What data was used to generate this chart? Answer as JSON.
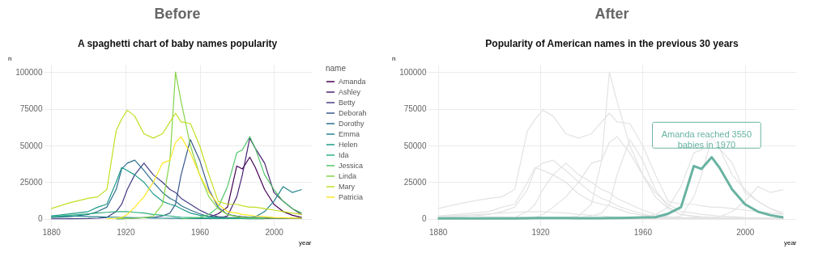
{
  "chart_data": [
    {
      "type": "line",
      "title": "Before",
      "subtitle": "A spaghetti chart of baby names popularity",
      "xlabel": "year",
      "ylabel": "n",
      "legend_title": "name",
      "legend": "right",
      "grid": true,
      "xlim": [
        1876,
        2020
      ],
      "xticks": [
        1880,
        1920,
        1960,
        2000
      ],
      "ylim": [
        -5000,
        105000
      ],
      "yticks": [
        0,
        25000,
        50000,
        75000,
        100000
      ],
      "x": [
        1880,
        1890,
        1900,
        1905,
        1910,
        1915,
        1918,
        1921,
        1925,
        1930,
        1935,
        1940,
        1944,
        1947,
        1950,
        1955,
        1960,
        1965,
        1970,
        1975,
        1980,
        1983,
        1987,
        1990,
        1995,
        2000,
        2005,
        2010,
        2015
      ],
      "series": [
        {
          "name": "Amanda",
          "color": "#440154",
          "values": [
            null,
            null,
            null,
            null,
            null,
            null,
            null,
            null,
            null,
            null,
            null,
            null,
            null,
            null,
            null,
            null,
            null,
            1200,
            3550,
            8000,
            36000,
            34000,
            42000,
            35000,
            20000,
            10000,
            5000,
            2500,
            1000
          ]
        },
        {
          "name": "Ashley",
          "color": "#482173",
          "values": [
            null,
            null,
            null,
            null,
            null,
            null,
            null,
            null,
            null,
            null,
            null,
            null,
            null,
            null,
            null,
            null,
            null,
            100,
            500,
            2000,
            15000,
            30000,
            55000,
            48000,
            38000,
            18000,
            12000,
            7000,
            3000
          ]
        },
        {
          "name": "Betty",
          "color": "#433e85",
          "values": [
            100,
            200,
            300,
            500,
            1000,
            5000,
            10000,
            20000,
            30000,
            38000,
            30000,
            25000,
            20000,
            18000,
            14000,
            10000,
            6000,
            3000,
            1500,
            1000,
            800,
            600,
            500,
            400,
            300,
            300,
            300,
            300,
            300
          ]
        },
        {
          "name": "Deborah",
          "color": "#38598c",
          "values": [
            null,
            null,
            null,
            null,
            null,
            100,
            200,
            300,
            500,
            800,
            1000,
            2000,
            4000,
            10000,
            30000,
            54000,
            40000,
            20000,
            8000,
            3000,
            2000,
            1500,
            1200,
            1000,
            800,
            600,
            500,
            400,
            300
          ]
        },
        {
          "name": "Dorothy",
          "color": "#2d708e",
          "values": [
            1000,
            1500,
            3000,
            5000,
            8000,
            20000,
            34000,
            38000,
            40000,
            33000,
            25000,
            18000,
            14000,
            12000,
            9000,
            6000,
            3500,
            1500,
            800,
            500,
            300,
            300,
            200,
            200,
            200,
            null,
            null,
            null,
            null
          ]
        },
        {
          "name": "Emma",
          "color": "#25858e",
          "values": [
            2000,
            2000,
            1500,
            1500,
            1300,
            1200,
            1000,
            1000,
            900,
            800,
            600,
            500,
            400,
            400,
            300,
            300,
            300,
            300,
            300,
            300,
            400,
            600,
            1000,
            1500,
            5000,
            12000,
            22000,
            18000,
            20000
          ]
        },
        {
          "name": "Helen",
          "color": "#1e9b8a",
          "values": [
            2000,
            3500,
            5000,
            8000,
            10000,
            25000,
            35000,
            33000,
            30000,
            25000,
            17000,
            12000,
            10000,
            9000,
            7000,
            4000,
            2500,
            1500,
            1000,
            700,
            500,
            400,
            400,
            400,
            300,
            null,
            null,
            null,
            null
          ]
        },
        {
          "name": "Ida",
          "color": "#2ab07f",
          "values": [
            1500,
            2500,
            3500,
            4000,
            4500,
            5000,
            5000,
            5000,
            4500,
            4000,
            3000,
            2500,
            2000,
            1500,
            1200,
            1000,
            800,
            600,
            500,
            400,
            300,
            300,
            300,
            300,
            300,
            null,
            null,
            null,
            null
          ]
        },
        {
          "name": "Jessica",
          "color": "#52c569",
          "values": [
            null,
            null,
            null,
            null,
            null,
            null,
            null,
            null,
            null,
            null,
            null,
            null,
            null,
            null,
            100,
            500,
            1000,
            3000,
            8000,
            22000,
            45000,
            47000,
            56000,
            48000,
            30000,
            20000,
            12000,
            7000,
            4000
          ]
        },
        {
          "name": "Linda",
          "color": "#86d549",
          "values": [
            null,
            null,
            null,
            null,
            null,
            100,
            200,
            300,
            500,
            800,
            2000,
            10000,
            40000,
            100000,
            80000,
            50000,
            30000,
            15000,
            7000,
            3000,
            1500,
            1000,
            800,
            600,
            500,
            500,
            500,
            500,
            500
          ]
        },
        {
          "name": "Mary",
          "color": "#c2df23",
          "values": [
            7000,
            11000,
            14000,
            15000,
            20000,
            60000,
            68000,
            74000,
            70000,
            58000,
            55000,
            58000,
            66000,
            72000,
            66000,
            65000,
            50000,
            30000,
            12000,
            10000,
            10000,
            9000,
            8000,
            8000,
            7000,
            6000,
            5000,
            4000,
            3000
          ]
        },
        {
          "name": "Patricia",
          "color": "#fde725",
          "values": [
            null,
            null,
            null,
            null,
            100,
            500,
            1000,
            3000,
            8000,
            15000,
            25000,
            38000,
            40000,
            52000,
            56000,
            45000,
            30000,
            18000,
            10000,
            5000,
            4000,
            3000,
            2500,
            2000,
            1500,
            1000,
            800,
            600,
            500
          ]
        }
      ]
    },
    {
      "type": "line",
      "title": "After",
      "subtitle": "Popularity of American names in the previous 30 years",
      "xlabel": "year",
      "ylabel": "n",
      "grid": true,
      "xlim": [
        1876,
        2020
      ],
      "xticks": [
        1880,
        1920,
        1960,
        2000
      ],
      "ylim": [
        -5000,
        105000
      ],
      "yticks": [
        0,
        25000,
        50000,
        75000,
        100000
      ],
      "annotations": [
        {
          "text": "Amanda reached 3550\nbabies in 1970",
          "x": 1985,
          "y": 57000
        }
      ],
      "x": [
        1880,
        1890,
        1900,
        1905,
        1910,
        1915,
        1918,
        1921,
        1925,
        1930,
        1935,
        1940,
        1944,
        1947,
        1950,
        1955,
        1960,
        1965,
        1970,
        1975,
        1980,
        1983,
        1987,
        1990,
        1995,
        2000,
        2005,
        2010,
        2015
      ],
      "series": [
        {
          "color": "#e3e3e3",
          "values": [
            0,
            0,
            0,
            0,
            0,
            0,
            0,
            0,
            0,
            0,
            0,
            0,
            0,
            0,
            0,
            0,
            0,
            100,
            500,
            2000,
            15000,
            30000,
            55000,
            48000,
            38000,
            18000,
            12000,
            7000,
            3000
          ]
        },
        {
          "color": "#e3e3e3",
          "values": [
            100,
            200,
            300,
            500,
            1000,
            5000,
            10000,
            20000,
            30000,
            38000,
            30000,
            25000,
            20000,
            18000,
            14000,
            10000,
            6000,
            3000,
            1500,
            1000,
            800,
            600,
            500,
            400,
            300,
            300,
            300,
            300,
            300
          ]
        },
        {
          "color": "#e3e3e3",
          "values": [
            0,
            0,
            0,
            0,
            0,
            100,
            200,
            300,
            500,
            800,
            1000,
            2000,
            4000,
            10000,
            30000,
            54000,
            40000,
            20000,
            8000,
            3000,
            2000,
            1500,
            1200,
            1000,
            800,
            600,
            500,
            400,
            300
          ]
        },
        {
          "color": "#e3e3e3",
          "values": [
            1000,
            1500,
            3000,
            5000,
            8000,
            20000,
            34000,
            38000,
            40000,
            33000,
            25000,
            18000,
            14000,
            12000,
            9000,
            6000,
            3500,
            1500,
            800,
            500,
            300,
            300,
            200,
            200,
            200,
            200,
            200,
            200,
            200
          ]
        },
        {
          "color": "#e3e3e3",
          "values": [
            2000,
            2000,
            1500,
            1500,
            1300,
            1200,
            1000,
            1000,
            900,
            800,
            600,
            500,
            400,
            400,
            300,
            300,
            300,
            300,
            300,
            300,
            400,
            600,
            1000,
            1500,
            5000,
            12000,
            22000,
            18000,
            20000
          ]
        },
        {
          "color": "#e3e3e3",
          "values": [
            2000,
            3500,
            5000,
            8000,
            10000,
            25000,
            35000,
            33000,
            30000,
            25000,
            17000,
            12000,
            10000,
            9000,
            7000,
            4000,
            2500,
            1500,
            1000,
            700,
            500,
            400,
            400,
            400,
            300,
            300,
            300,
            300,
            300
          ]
        },
        {
          "color": "#e3e3e3",
          "values": [
            1500,
            2500,
            3500,
            4000,
            4500,
            5000,
            5000,
            5000,
            4500,
            4000,
            3000,
            2500,
            2000,
            1500,
            1200,
            1000,
            800,
            600,
            500,
            400,
            300,
            300,
            300,
            300,
            300,
            300,
            300,
            300,
            300
          ]
        },
        {
          "color": "#e3e3e3",
          "values": [
            0,
            0,
            0,
            0,
            0,
            0,
            0,
            0,
            0,
            0,
            0,
            0,
            0,
            0,
            100,
            500,
            1000,
            3000,
            8000,
            22000,
            45000,
            47000,
            56000,
            48000,
            30000,
            20000,
            12000,
            7000,
            4000
          ]
        },
        {
          "color": "#e3e3e3",
          "values": [
            0,
            0,
            0,
            0,
            0,
            100,
            200,
            300,
            500,
            800,
            2000,
            10000,
            40000,
            100000,
            80000,
            50000,
            30000,
            15000,
            7000,
            3000,
            1500,
            1000,
            800,
            600,
            500,
            500,
            500,
            500,
            500
          ]
        },
        {
          "color": "#e3e3e3",
          "values": [
            7000,
            11000,
            14000,
            15000,
            20000,
            60000,
            68000,
            74000,
            70000,
            58000,
            55000,
            58000,
            66000,
            72000,
            66000,
            65000,
            50000,
            30000,
            12000,
            10000,
            10000,
            9000,
            8000,
            8000,
            7000,
            6000,
            5000,
            4000,
            3000
          ]
        },
        {
          "color": "#e3e3e3",
          "values": [
            0,
            0,
            0,
            0,
            100,
            500,
            1000,
            3000,
            8000,
            15000,
            25000,
            38000,
            40000,
            52000,
            56000,
            45000,
            30000,
            18000,
            10000,
            5000,
            4000,
            3000,
            2500,
            2000,
            1500,
            1000,
            800,
            600,
            500
          ]
        },
        {
          "color": "#69b3a2",
          "values": [
            300,
            400,
            400,
            400,
            400,
            500,
            600,
            700,
            700,
            600,
            500,
            500,
            500,
            600,
            700,
            800,
            1000,
            1200,
            3550,
            8000,
            36000,
            34000,
            42000,
            35000,
            20000,
            10000,
            5000,
            2500,
            1000
          ]
        }
      ]
    }
  ]
}
